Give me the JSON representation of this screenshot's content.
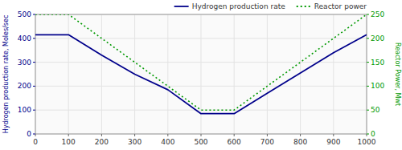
{
  "chart_data": {
    "type": "line",
    "x": [
      0,
      100,
      200,
      300,
      400,
      500,
      600,
      700,
      800,
      900,
      1000
    ],
    "xlim": [
      0,
      1000
    ],
    "xticks": [
      0,
      100,
      200,
      300,
      400,
      500,
      600,
      700,
      800,
      900,
      1000
    ],
    "ylim": [
      0,
      500
    ],
    "yticks": [
      0,
      100,
      200,
      300,
      400,
      500
    ],
    "y2lim": [
      0,
      250
    ],
    "y2ticks": [
      0,
      50,
      100,
      150,
      200,
      250
    ],
    "y_label": "Hydrogen production rate, Moles/sec",
    "y2_label": "Reactor Power, Mwt",
    "grid": true,
    "legend": "upper right",
    "series": [
      {
        "name": "Hydrogen production rate",
        "color": "#00008B",
        "line_style": "solid",
        "values": [
          415,
          415,
          330,
          250,
          185,
          85,
          85,
          170,
          255,
          340,
          415
        ]
      },
      {
        "name": "Reactor power",
        "color": "#009900",
        "line_style": "dotted",
        "axis": "y2",
        "values": [
          250,
          250,
          200,
          150,
          100,
          50,
          50,
          100,
          150,
          200,
          250
        ]
      }
    ]
  }
}
